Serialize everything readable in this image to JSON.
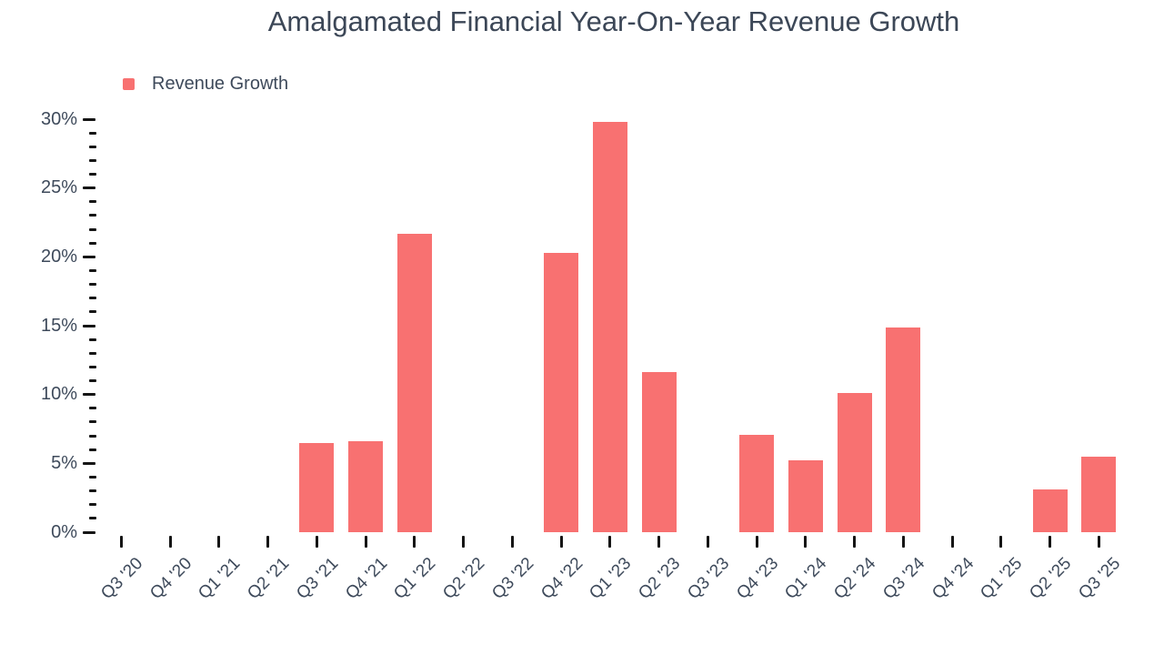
{
  "chart_data": {
    "type": "bar",
    "title": "Amalgamated Financial Year-On-Year Revenue Growth",
    "categories": [
      "Q3 '20",
      "Q4 '20",
      "Q1 '21",
      "Q2 '21",
      "Q3 '21",
      "Q4 '21",
      "Q1 '22",
      "Q2 '22",
      "Q3 '22",
      "Q4 '22",
      "Q1 '23",
      "Q2 '23",
      "Q3 '23",
      "Q4 '23",
      "Q1 '24",
      "Q2 '24",
      "Q3 '24",
      "Q4 '24",
      "Q1 '25",
      "Q2 '25",
      "Q3 '25"
    ],
    "series": [
      {
        "name": "Revenue Growth",
        "color": "#f87171",
        "values": [
          null,
          null,
          null,
          null,
          6.5,
          6.6,
          21.7,
          null,
          null,
          20.3,
          29.8,
          11.6,
          null,
          7.1,
          5.2,
          10.1,
          14.9,
          null,
          null,
          3.1,
          5.5
        ]
      }
    ],
    "value_unit": "%",
    "xlabel": "",
    "ylabel": "",
    "ylim": [
      0,
      30
    ],
    "ytick_step": 5,
    "yminor_step": 1,
    "ytick_labels": [
      "0%",
      "5%",
      "10%",
      "15%",
      "20%",
      "25%",
      "30%"
    ],
    "legend_position": "top-left",
    "grid": false,
    "colors": {
      "bar": "#f87171",
      "text": "#3e4a5b",
      "title": "#3c4757",
      "ticks": "#151515",
      "background": "#ffffff"
    }
  }
}
